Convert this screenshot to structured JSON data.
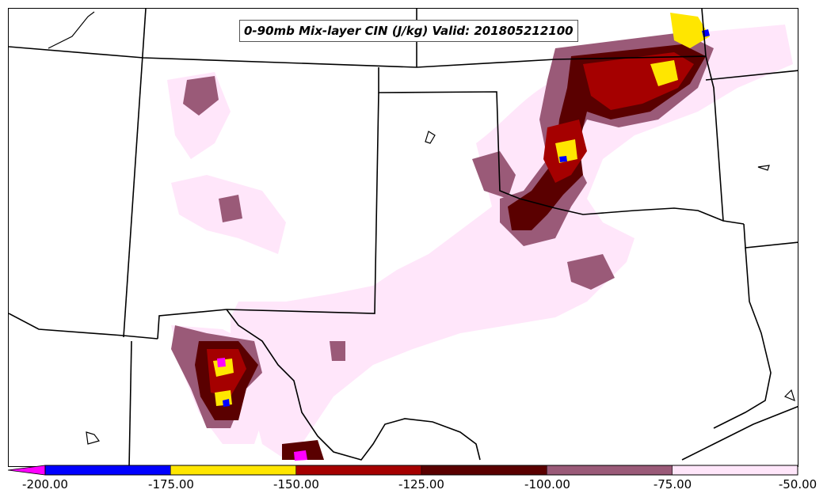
{
  "title": "0-90mb Mix-layer CIN (J/kg) Valid: 201805212100",
  "legend": {
    "ticks": [
      "-200.00",
      "-175.00",
      "-150.00",
      "-125.00",
      "-100.00",
      "-75.00",
      "-50.00"
    ],
    "colors": [
      "#ff00ff",
      "#0000ff",
      "#ffe600",
      "#a50000",
      "#5a0000",
      "#9a5a78",
      "#ffe6fa"
    ]
  },
  "palette": {
    "blue": "#0000ff",
    "yellow": "#ffe600",
    "red": "#a50000",
    "darkred": "#5a0000",
    "mauve": "#9a5a78",
    "pink": "#ffe6fa",
    "magenta": "#ff00ff"
  }
}
